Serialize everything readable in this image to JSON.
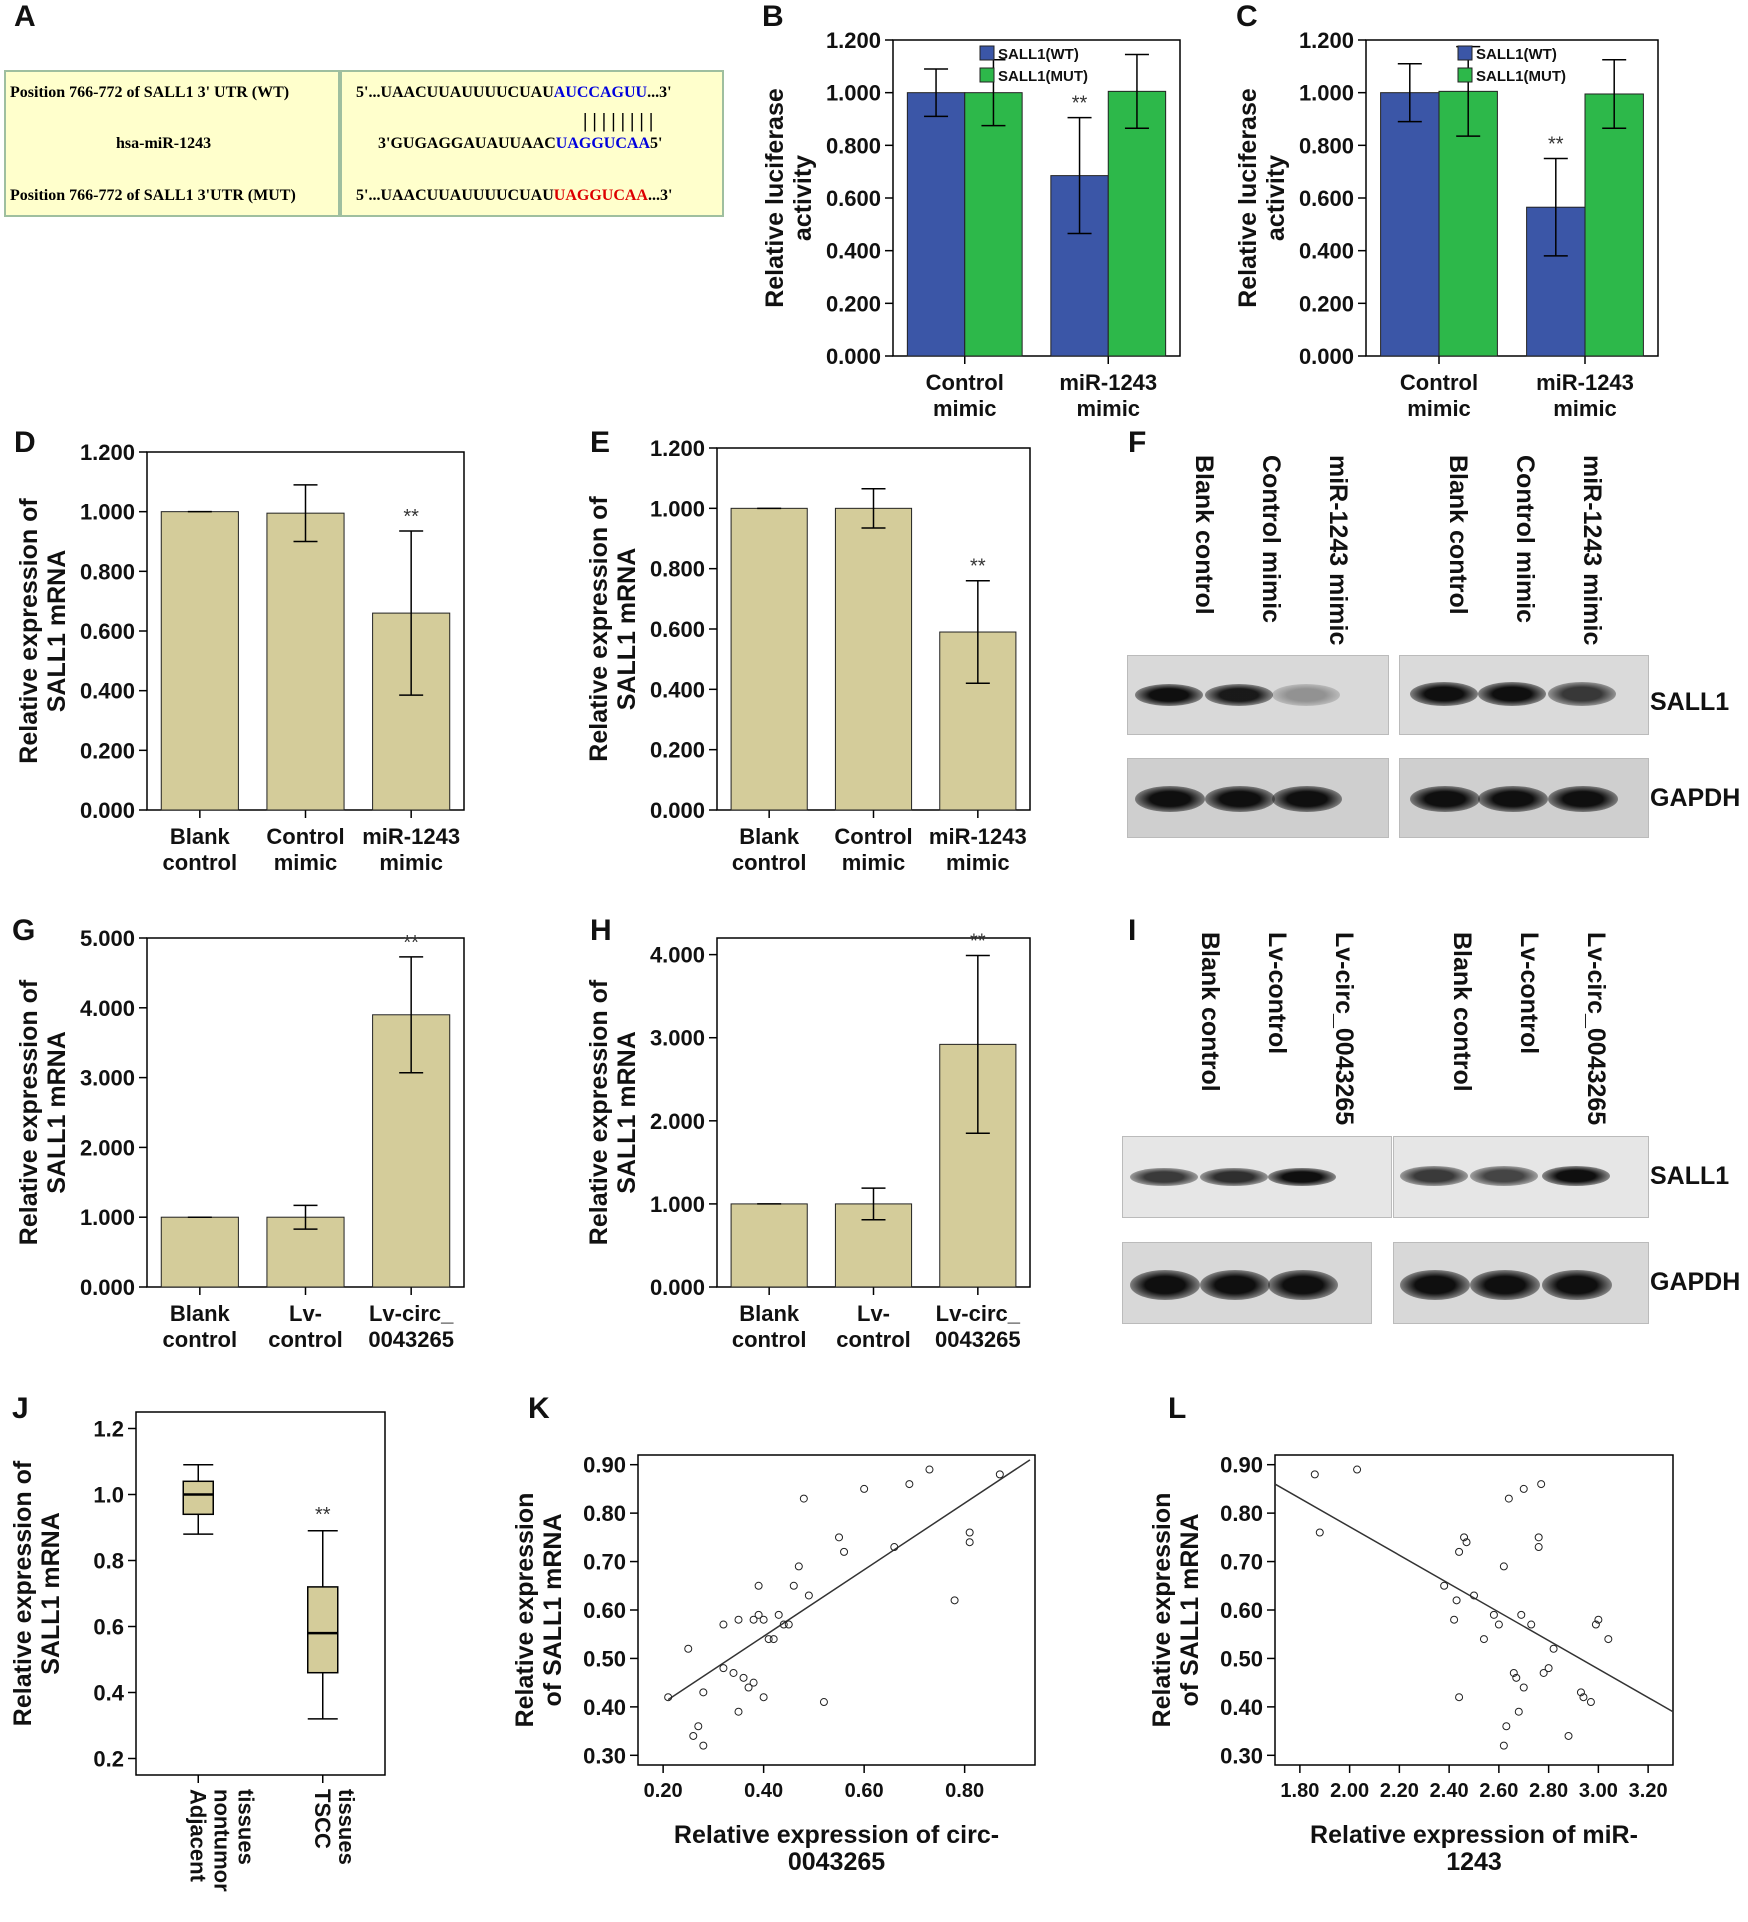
{
  "panel_letters": [
    "A",
    "B",
    "C",
    "D",
    "E",
    "F",
    "G",
    "H",
    "I",
    "J",
    "K",
    "L"
  ],
  "panelA": {
    "row1_label": "Position 766-772 of SALL1 3' UTR (WT)",
    "row2_label": "hsa-miR-1243",
    "row3_label": "Position 766-772 of SALL1 3'UTR (MUT)",
    "row1_seq_pre": "5'...UAACUUAUUUUCUAU",
    "row1_seq_hl": "AUCCAGUU",
    "row1_seq_post": "...3'",
    "pairing": "| | | | | | | |",
    "row2_seq_pre": "3'GUGAGGAUAUUAAC",
    "row2_seq_hl": "UAGGUCAA",
    "row2_seq_post": "5'",
    "row3_seq_pre": "5'...UAACUUAUUUUCUAU",
    "row3_seq_hl": "UAGGUCAA",
    "row3_seq_post": "...3'",
    "colors": {
      "box_bg": "#ffffcc",
      "wt_highlight": "#0000dd",
      "mut_highlight": "#dd0000"
    }
  },
  "blots": {
    "F": {
      "lanes_left": [
        "Blank control",
        "Control mimic",
        "miR-1243 mimic"
      ],
      "lanes_right": [
        "Blank control",
        "Control mimic",
        "miR-1243 mimic"
      ],
      "row_labels": [
        "SALL1",
        "GAPDH"
      ],
      "sall1_intensity_left": [
        1.0,
        0.95,
        0.35
      ],
      "sall1_intensity_right": [
        1.0,
        1.0,
        0.8
      ],
      "gapdh_intensity": [
        1.0,
        1.0,
        1.0
      ]
    },
    "I": {
      "lanes_left": [
        "Blank control",
        "Lv-control",
        "Lv-circ_0043265"
      ],
      "lanes_right": [
        "Blank control",
        "Lv-control",
        "Lv-circ_0043265"
      ],
      "row_labels": [
        "SALL1",
        "GAPDH"
      ],
      "sall1_intensity_left": [
        0.8,
        0.85,
        1.0
      ],
      "sall1_intensity_right": [
        0.8,
        0.75,
        1.0
      ],
      "gapdh_intensity": [
        1.0,
        1.0,
        1.0
      ]
    }
  },
  "chart_data": [
    {
      "panel": "B",
      "type": "bar",
      "categories": [
        "Control\nmimic",
        "miR-1243\nmimic"
      ],
      "series": [
        {
          "name": "SALL1(WT)",
          "color": "#3b56a7",
          "values": [
            1.0,
            0.685
          ],
          "err": [
            0.09,
            0.22
          ],
          "sig": [
            "",
            "**"
          ]
        },
        {
          "name": "SALL1(MUT)",
          "color": "#2db84a",
          "values": [
            1.0,
            1.005
          ],
          "err": [
            0.125,
            0.14
          ],
          "sig": [
            "",
            ""
          ]
        }
      ],
      "ylabel": "Relative luciferase\nactivity",
      "ylim": [
        0,
        1.2
      ],
      "yticks": [
        "0.000",
        "0.200",
        "0.400",
        "0.600",
        "0.800",
        "1.000",
        "1.200"
      ],
      "legend": "top-right"
    },
    {
      "panel": "C",
      "type": "bar",
      "categories": [
        "Control\nmimic",
        "miR-1243\nmimic"
      ],
      "series": [
        {
          "name": "SALL1(WT)",
          "color": "#3b56a7",
          "values": [
            1.0,
            0.565
          ],
          "err": [
            0.11,
            0.185
          ],
          "sig": [
            "",
            "**"
          ]
        },
        {
          "name": "SALL1(MUT)",
          "color": "#2db84a",
          "values": [
            1.005,
            0.995
          ],
          "err": [
            0.17,
            0.13
          ],
          "sig": [
            "",
            ""
          ]
        }
      ],
      "ylabel": "Relative luciferase\nactivity",
      "ylim": [
        0,
        1.2
      ],
      "yticks": [
        "0.000",
        "0.200",
        "0.400",
        "0.600",
        "0.800",
        "1.000",
        "1.200"
      ],
      "legend": "top-right"
    },
    {
      "panel": "D",
      "type": "bar",
      "categories": [
        "Blank\ncontrol",
        "Control\nmimic",
        "miR-1243\nmimic"
      ],
      "series": [
        {
          "name": "",
          "color": "#d4cc9a",
          "values": [
            1.0,
            0.995,
            0.66
          ],
          "err": [
            0.0,
            0.095,
            0.275
          ],
          "sig": [
            "",
            "",
            "**"
          ]
        }
      ],
      "ylabel": "Relative expression of\nSALL1 mRNA",
      "ylim": [
        0,
        1.2
      ],
      "yticks": [
        "0.000",
        "0.200",
        "0.400",
        "0.600",
        "0.800",
        "1.000",
        "1.200"
      ]
    },
    {
      "panel": "E",
      "type": "bar",
      "categories": [
        "Blank\ncontrol",
        "Control\nmimic",
        "miR-1243\nmimic"
      ],
      "series": [
        {
          "name": "",
          "color": "#d4cc9a",
          "values": [
            1.0,
            1.0,
            0.59
          ],
          "err": [
            0.0,
            0.065,
            0.17
          ],
          "sig": [
            "",
            "",
            "**"
          ]
        }
      ],
      "ylabel": "Relative expression of\nSALL1 mRNA",
      "ylim": [
        0,
        1.2
      ],
      "yticks": [
        "0.000",
        "0.200",
        "0.400",
        "0.600",
        "0.800",
        "1.000",
        "1.200"
      ]
    },
    {
      "panel": "G",
      "type": "bar",
      "categories": [
        "Blank\ncontrol",
        "Lv-\ncontrol",
        "Lv-circ_\n0043265"
      ],
      "series": [
        {
          "name": "",
          "color": "#d4cc9a",
          "values": [
            1.0,
            1.0,
            3.9
          ],
          "err": [
            0.0,
            0.17,
            0.83
          ],
          "sig": [
            "",
            "",
            "**"
          ]
        }
      ],
      "ylabel": "Relative expression of\nSALL1 mRNA",
      "ylim": [
        0,
        5
      ],
      "yticks": [
        "0.000",
        "1.000",
        "2.000",
        "3.000",
        "4.000",
        "5.000"
      ]
    },
    {
      "panel": "H",
      "type": "bar",
      "categories": [
        "Blank\ncontrol",
        "Lv-\ncontrol",
        "Lv-circ_\n0043265"
      ],
      "series": [
        {
          "name": "",
          "color": "#d4cc9a",
          "values": [
            1.0,
            1.0,
            2.92
          ],
          "err": [
            0.0,
            0.19,
            1.07
          ],
          "sig": [
            "",
            "",
            "**"
          ]
        }
      ],
      "ylabel": "Relative expression of\nSALL1 mRNA",
      "ylim": [
        0,
        4.2
      ],
      "yticks": [
        "0.000",
        "1.000",
        "2.000",
        "3.000",
        "4.000"
      ]
    },
    {
      "panel": "J",
      "type": "box",
      "categories": [
        "Adjacent\nnontumor\ntissues",
        "TSCC\ntissues"
      ],
      "boxes": [
        {
          "min": 0.88,
          "q1": 0.94,
          "median": 1.0,
          "q3": 1.04,
          "max": 1.09,
          "sig": ""
        },
        {
          "min": 0.32,
          "q1": 0.46,
          "median": 0.58,
          "q3": 0.72,
          "max": 0.89,
          "sig": "**"
        }
      ],
      "color": "#d4cc9a",
      "ylabel": "Relative expression of\nSALL1 mRNA",
      "ylim": [
        0.15,
        1.25
      ],
      "yticks": [
        "0.2",
        "0.4",
        "0.6",
        "0.8",
        "1.0",
        "1.2"
      ]
    },
    {
      "panel": "K",
      "type": "scatter",
      "xlabel": "Relative expression of circ-\n0043265",
      "ylabel": "Relative expression\nof SALL1 mRNA",
      "xlim": [
        0.15,
        0.94
      ],
      "ylim": [
        0.28,
        0.92
      ],
      "xticks": [
        "0.20",
        "0.40",
        "0.60",
        "0.80"
      ],
      "yticks": [
        "0.30",
        "0.40",
        "0.50",
        "0.60",
        "0.70",
        "0.80",
        "0.90"
      ],
      "fit": [
        [
          0.21,
          0.415
        ],
        [
          0.93,
          0.91
        ]
      ],
      "points": [
        [
          0.21,
          0.42
        ],
        [
          0.25,
          0.52
        ],
        [
          0.26,
          0.34
        ],
        [
          0.27,
          0.36
        ],
        [
          0.28,
          0.32
        ],
        [
          0.28,
          0.43
        ],
        [
          0.32,
          0.48
        ],
        [
          0.32,
          0.57
        ],
        [
          0.34,
          0.47
        ],
        [
          0.35,
          0.58
        ],
        [
          0.35,
          0.39
        ],
        [
          0.36,
          0.46
        ],
        [
          0.37,
          0.44
        ],
        [
          0.38,
          0.45
        ],
        [
          0.38,
          0.58
        ],
        [
          0.39,
          0.65
        ],
        [
          0.39,
          0.59
        ],
        [
          0.4,
          0.58
        ],
        [
          0.4,
          0.42
        ],
        [
          0.41,
          0.54
        ],
        [
          0.42,
          0.54
        ],
        [
          0.43,
          0.59
        ],
        [
          0.44,
          0.57
        ],
        [
          0.45,
          0.57
        ],
        [
          0.46,
          0.65
        ],
        [
          0.47,
          0.69
        ],
        [
          0.48,
          0.83
        ],
        [
          0.49,
          0.63
        ],
        [
          0.52,
          0.41
        ],
        [
          0.55,
          0.75
        ],
        [
          0.56,
          0.72
        ],
        [
          0.6,
          0.85
        ],
        [
          0.66,
          0.73
        ],
        [
          0.69,
          0.86
        ],
        [
          0.73,
          0.89
        ],
        [
          0.78,
          0.62
        ],
        [
          0.81,
          0.76
        ],
        [
          0.81,
          0.74
        ],
        [
          0.87,
          0.88
        ]
      ]
    },
    {
      "panel": "L",
      "type": "scatter",
      "xlabel": "Relative expression of miR-\n1243",
      "ylabel": "Relative expression\nof SALL1 mRNA",
      "xlim": [
        1.7,
        3.3
      ],
      "ylim": [
        0.28,
        0.92
      ],
      "xticks": [
        "1.80",
        "2.00",
        "2.20",
        "2.40",
        "2.60",
        "2.80",
        "3.00",
        "3.20"
      ],
      "yticks": [
        "0.30",
        "0.40",
        "0.50",
        "0.60",
        "0.70",
        "0.80",
        "0.90"
      ],
      "fit": [
        [
          1.7,
          0.86
        ],
        [
          3.3,
          0.39
        ]
      ],
      "points": [
        [
          1.86,
          0.88
        ],
        [
          1.88,
          0.76
        ],
        [
          2.03,
          0.89
        ],
        [
          2.38,
          0.65
        ],
        [
          2.42,
          0.58
        ],
        [
          2.43,
          0.62
        ],
        [
          2.44,
          0.72
        ],
        [
          2.44,
          0.42
        ],
        [
          2.46,
          0.75
        ],
        [
          2.47,
          0.74
        ],
        [
          2.5,
          0.63
        ],
        [
          2.54,
          0.54
        ],
        [
          2.58,
          0.59
        ],
        [
          2.6,
          0.57
        ],
        [
          2.62,
          0.69
        ],
        [
          2.62,
          0.32
        ],
        [
          2.63,
          0.36
        ],
        [
          2.64,
          0.83
        ],
        [
          2.66,
          0.47
        ],
        [
          2.67,
          0.46
        ],
        [
          2.68,
          0.39
        ],
        [
          2.69,
          0.59
        ],
        [
          2.7,
          0.85
        ],
        [
          2.7,
          0.44
        ],
        [
          2.73,
          0.57
        ],
        [
          2.76,
          0.75
        ],
        [
          2.76,
          0.73
        ],
        [
          2.77,
          0.86
        ],
        [
          2.78,
          0.47
        ],
        [
          2.8,
          0.48
        ],
        [
          2.82,
          0.52
        ],
        [
          2.88,
          0.34
        ],
        [
          2.93,
          0.43
        ],
        [
          2.94,
          0.42
        ],
        [
          2.97,
          0.41
        ],
        [
          2.99,
          0.57
        ],
        [
          3.0,
          0.58
        ],
        [
          3.04,
          0.54
        ]
      ]
    }
  ]
}
